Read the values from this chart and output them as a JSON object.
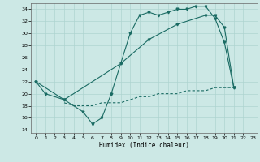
{
  "title": "",
  "xlabel": "Humidex (Indice chaleur)",
  "ylabel": "",
  "bg_color": "#cce8e5",
  "grid_color": "#aed4d0",
  "line_color": "#1a6b63",
  "xlim": [
    -0.5,
    23.5
  ],
  "ylim": [
    13.5,
    35.0
  ],
  "yticks": [
    14,
    16,
    18,
    20,
    22,
    24,
    26,
    28,
    30,
    32,
    34
  ],
  "xticks": [
    0,
    1,
    2,
    3,
    4,
    5,
    6,
    7,
    8,
    9,
    10,
    11,
    12,
    13,
    14,
    15,
    16,
    17,
    18,
    19,
    20,
    21,
    22,
    23
  ],
  "line1_x": [
    0,
    1,
    3,
    5,
    6,
    7,
    8,
    9,
    10,
    11,
    12,
    13,
    14,
    15,
    16,
    17,
    18,
    19,
    20,
    21
  ],
  "line1_y": [
    22,
    20,
    19,
    17,
    15,
    16,
    20,
    25,
    30,
    33,
    33.5,
    33,
    33.5,
    34,
    34,
    34.5,
    34.5,
    32.5,
    28.5,
    21
  ],
  "line2_x": [
    0,
    3,
    9,
    12,
    15,
    18,
    19,
    20,
    21
  ],
  "line2_y": [
    22,
    19,
    25,
    29,
    31.5,
    33,
    33,
    31,
    21
  ],
  "line3_x": [
    3,
    4,
    5,
    6,
    7,
    8,
    9,
    10,
    11,
    12,
    13,
    14,
    15,
    16,
    17,
    18,
    19,
    20,
    21
  ],
  "line3_y": [
    18.5,
    18,
    18,
    18,
    18.5,
    18.5,
    18.5,
    19,
    19.5,
    19.5,
    20,
    20,
    20,
    20.5,
    20.5,
    20.5,
    21,
    21,
    21
  ]
}
